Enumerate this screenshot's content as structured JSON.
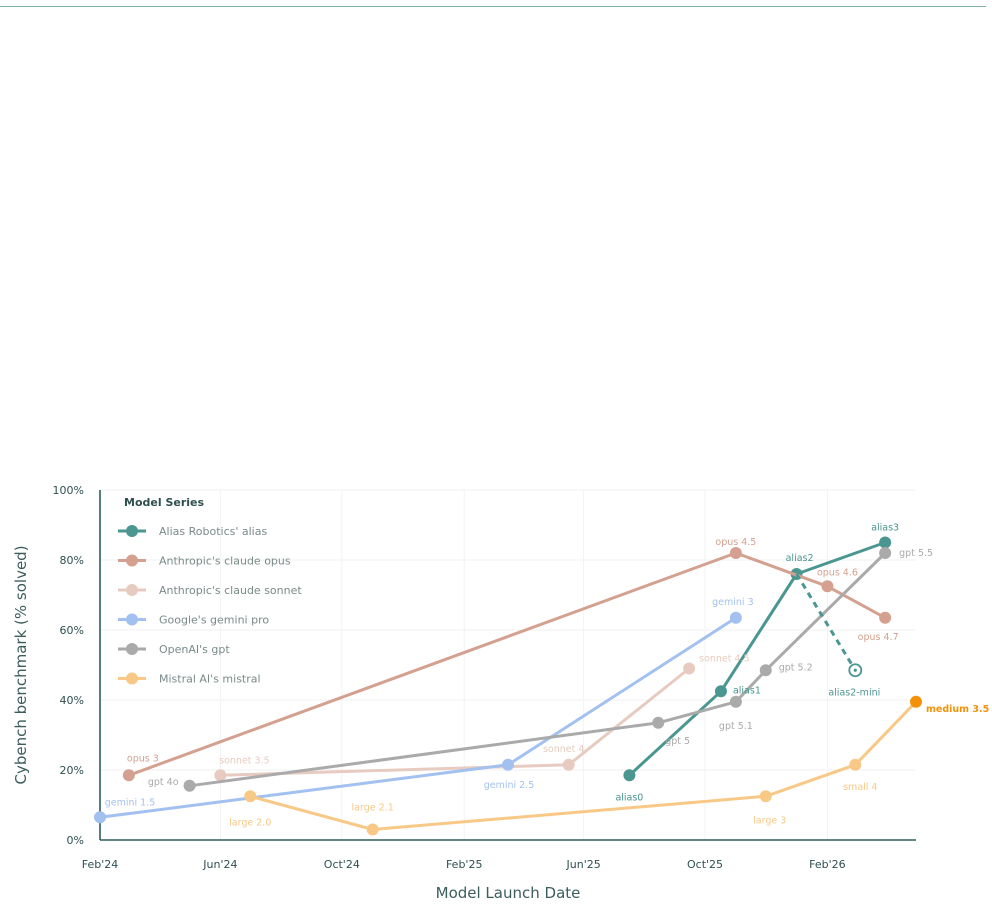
{
  "chart_data": {
    "type": "line",
    "title": "",
    "xlabel": "Model Launch Date",
    "ylabel": "Cybench benchmark (% solved)",
    "xlim": [
      "2024-02-01",
      "2026-05-01"
    ],
    "ylim": [
      0,
      100
    ],
    "grid": true,
    "legend": {
      "title": "Model Series",
      "placement": "top-left"
    },
    "x_ticks": [
      {
        "date": "2024-02-01",
        "label": "Feb'24"
      },
      {
        "date": "2024-06-01",
        "label": "Jun'24"
      },
      {
        "date": "2024-10-01",
        "label": "Oct'24"
      },
      {
        "date": "2025-02-01",
        "label": "Feb'25"
      },
      {
        "date": "2025-06-01",
        "label": "Jun'25"
      },
      {
        "date": "2025-10-01",
        "label": "Oct'25"
      },
      {
        "date": "2026-02-01",
        "label": "Feb'26"
      }
    ],
    "y_ticks": [
      {
        "value": 0,
        "label": "0%"
      },
      {
        "value": 20,
        "label": "20%"
      },
      {
        "value": 40,
        "label": "40%"
      },
      {
        "value": 60,
        "label": "60%"
      },
      {
        "value": 80,
        "label": "80%"
      },
      {
        "value": 100,
        "label": "100%"
      }
    ],
    "series": [
      {
        "name": "Alias Robotics' alias",
        "color": "#4a9690",
        "points": [
          {
            "date": "2025-07-17",
            "value": 18.5,
            "label": "alias0"
          },
          {
            "date": "2025-10-17",
            "value": 42.5,
            "label": "alias1"
          },
          {
            "date": "2026-01-01",
            "value": 76,
            "label": "alias2"
          },
          {
            "date": "2026-03-31",
            "value": 85,
            "label": "alias3"
          }
        ]
      },
      {
        "name": "Anthropic's claude opus",
        "color": "#d4a08f",
        "points": [
          {
            "date": "2024-03-01",
            "value": 18.5,
            "label": "opus 3"
          },
          {
            "date": "2025-11-01",
            "value": 82,
            "label": "opus 4.5"
          },
          {
            "date": "2026-02-01",
            "value": 72.5,
            "label": "opus 4.6"
          },
          {
            "date": "2026-03-31",
            "value": 63.5,
            "label": "opus 4.7"
          }
        ]
      },
      {
        "name": "Anthropic's claude sonnet",
        "color": "#e8cbc0",
        "points": [
          {
            "date": "2024-06-01",
            "value": 18.5,
            "label": "sonnet 3.5"
          },
          {
            "date": "2025-05-17",
            "value": 21.5,
            "label": "sonnet 4"
          },
          {
            "date": "2025-09-15",
            "value": 49,
            "label": "sonnet 4.5"
          }
        ]
      },
      {
        "name": "Google's gemini pro",
        "color": "#a2c1f0",
        "points": [
          {
            "date": "2024-02-01",
            "value": 6.5,
            "label": "gemini 1.5"
          },
          {
            "date": "2025-03-17",
            "value": 21.5,
            "label": "gemini 2.5"
          },
          {
            "date": "2025-11-01",
            "value": 63.5,
            "label": "gemini 3"
          }
        ]
      },
      {
        "name": "OpenAI's gpt",
        "color": "#aaaaaa",
        "points": [
          {
            "date": "2024-05-01",
            "value": 15.5,
            "label": "gpt 4o"
          },
          {
            "date": "2025-08-15",
            "value": 33.5,
            "label": "gpt 5"
          },
          {
            "date": "2025-11-01",
            "value": 39.5,
            "label": "gpt 5.1"
          },
          {
            "date": "2025-12-01",
            "value": 48.5,
            "label": "gpt 5.2"
          },
          {
            "date": "2026-03-31",
            "value": 82,
            "label": "gpt 5.5"
          }
        ]
      },
      {
        "name": "Mistral AI's mistral",
        "color": "#f8c887",
        "points": [
          {
            "date": "2024-07-01",
            "value": 12.5,
            "label": "large 2.0"
          },
          {
            "date": "2024-11-01",
            "value": 3.0,
            "label": "large 2.1"
          },
          {
            "date": "2025-12-01",
            "value": 12.5,
            "label": "large 3"
          },
          {
            "date": "2026-03-01",
            "value": 21.5,
            "label": "small 4"
          },
          {
            "date": "2026-05-01",
            "value": 39.5,
            "label": "medium 3.5"
          }
        ]
      }
    ],
    "annotations": [
      {
        "series": "Alias Robotics' alias",
        "from": {
          "date": "2026-01-01",
          "value": 76
        },
        "to": {
          "date": "2026-03-01",
          "value": 48.5
        },
        "label": "alias2-mini",
        "style": "dashed"
      }
    ]
  }
}
